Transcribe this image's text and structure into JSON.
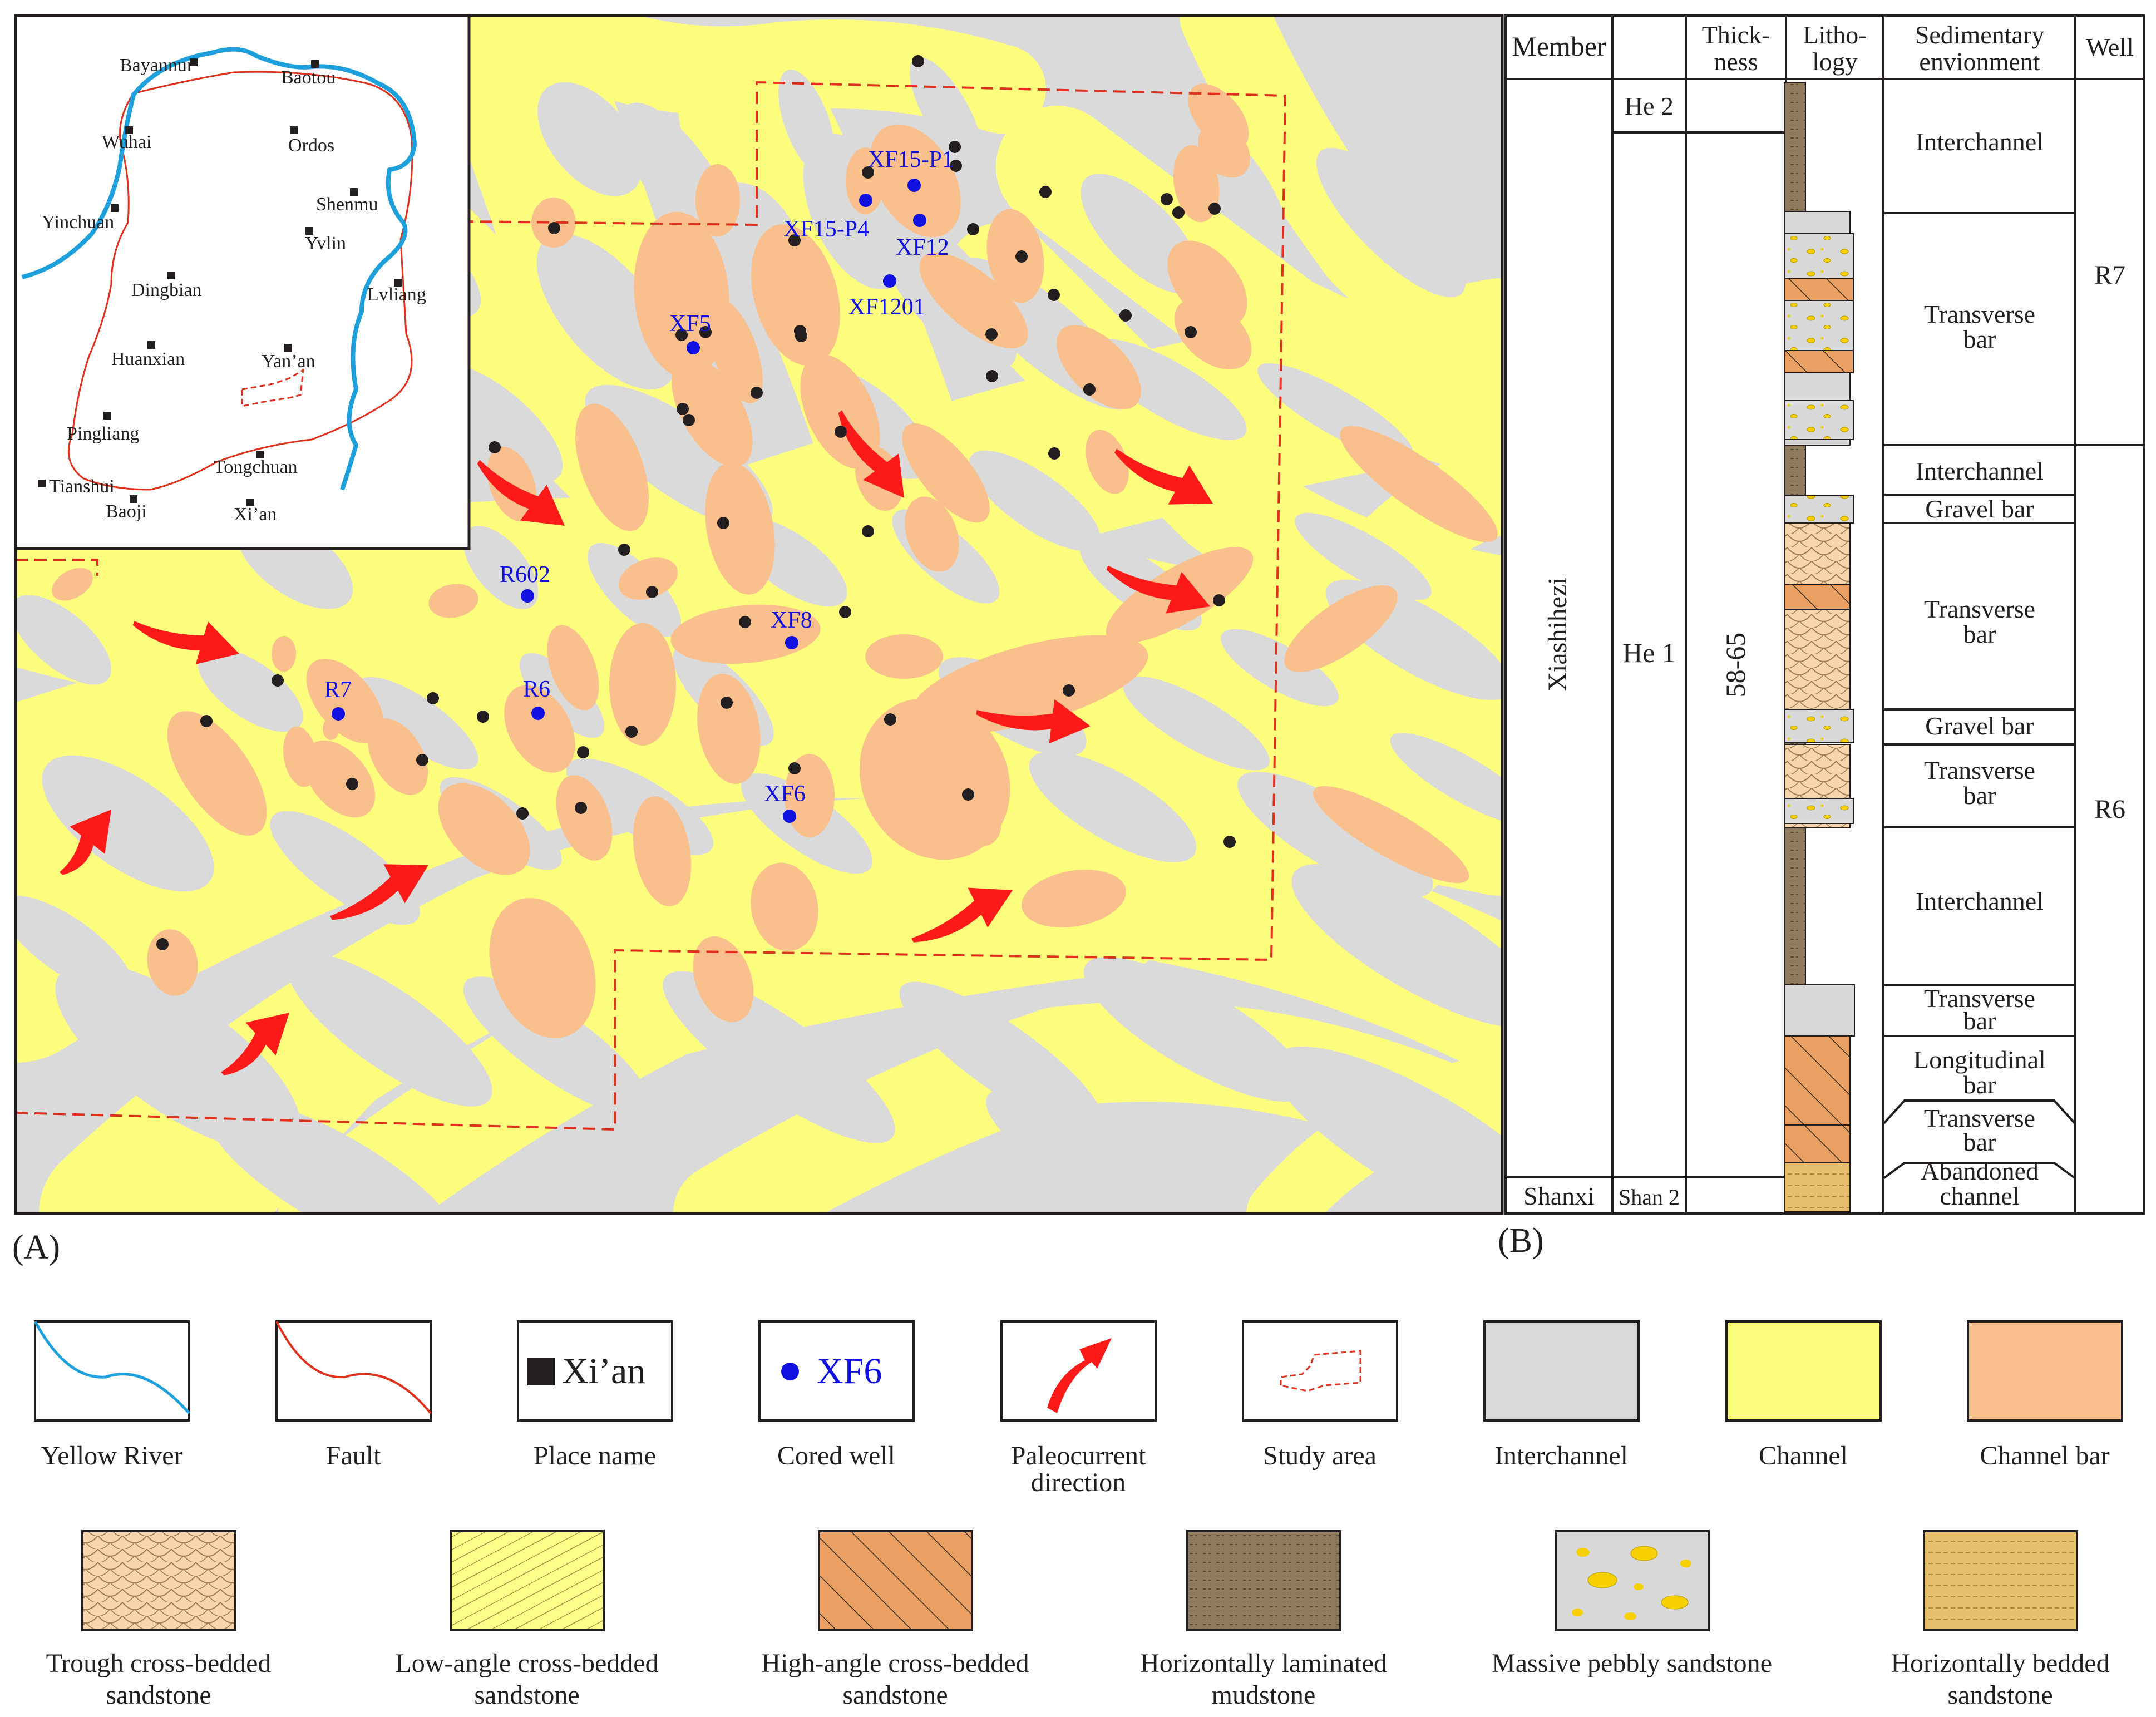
{
  "panels": {
    "a_label": "(A)",
    "b_label": "(B)"
  },
  "inset_places": [
    {
      "name": "Bayannur",
      "id": "bayannur"
    },
    {
      "name": "Baotou",
      "id": "baotou"
    },
    {
      "name": "Wuhai",
      "id": "wuhai"
    },
    {
      "name": "Ordos",
      "id": "ordos"
    },
    {
      "name": "Yinchuan",
      "id": "yinchuan"
    },
    {
      "name": "Shenmu",
      "id": "shenmu"
    },
    {
      "name": "Yvlin",
      "id": "yvlin"
    },
    {
      "name": "Dingbian",
      "id": "dingbian"
    },
    {
      "name": "Lvliang",
      "id": "lvliang"
    },
    {
      "name": "Huanxian",
      "id": "huanxian"
    },
    {
      "name": "Yan’an",
      "id": "yanan"
    },
    {
      "name": "Pingliang",
      "id": "pingliang"
    },
    {
      "name": "Tongchuan",
      "id": "tongchuan"
    },
    {
      "name": "Tianshui",
      "id": "tianshui"
    },
    {
      "name": "Baoji",
      "id": "baoji"
    },
    {
      "name": "Xi’an",
      "id": "xian"
    }
  ],
  "cored_wells": [
    {
      "name": "XF15-P1"
    },
    {
      "name": "XF15-P4"
    },
    {
      "name": "XF12"
    },
    {
      "name": "XF1201"
    },
    {
      "name": "XF5"
    },
    {
      "name": "R602"
    },
    {
      "name": "XF8"
    },
    {
      "name": "R7"
    },
    {
      "name": "R6"
    },
    {
      "name": "XF6"
    }
  ],
  "column": {
    "headers": {
      "member": "Member",
      "thickness_1": "Thick-",
      "thickness_2": "ness",
      "lithology_1": "Litho-",
      "lithology_2": "logy",
      "environment_1": "Sedimentary",
      "environment_2": "envionment",
      "well": "Well"
    },
    "members": {
      "xiashihezi": "Xiashihezi",
      "shanxi": "Shanxi"
    },
    "submembers": {
      "he2": "He 2",
      "he1": "He 1",
      "shan2": "Shan 2"
    },
    "thickness": "58-65",
    "environments": [
      {
        "line1": "Interchannel",
        "line2": ""
      },
      {
        "line1": "Transverse",
        "line2": "bar"
      },
      {
        "line1": "Interchannel",
        "line2": ""
      },
      {
        "line1": "Gravel bar",
        "line2": ""
      },
      {
        "line1": "Transverse",
        "line2": "bar"
      },
      {
        "line1": "Gravel bar",
        "line2": ""
      },
      {
        "line1": "Transverse",
        "line2": "bar"
      },
      {
        "line1": "Interchannel",
        "line2": ""
      },
      {
        "line1": "Transverse",
        "line2": "bar"
      },
      {
        "line1": "Longitudinal",
        "line2": "bar"
      },
      {
        "line1": "Transverse",
        "line2": "bar"
      },
      {
        "line1": "Abandoned",
        "line2": "channel"
      }
    ],
    "wells": {
      "r7": "R7",
      "r6": "R6"
    }
  },
  "legend": {
    "row1": [
      {
        "label": "Yellow River",
        "label2": ""
      },
      {
        "label": "Fault",
        "label2": ""
      },
      {
        "label": "Place name",
        "label2": "",
        "sample": "Xi’an"
      },
      {
        "label": "Cored well",
        "label2": "",
        "sample": "XF6"
      },
      {
        "label": "Paleocurrent",
        "label2": "direction"
      },
      {
        "label": "Study area",
        "label2": ""
      },
      {
        "label": "Interchannel",
        "label2": ""
      },
      {
        "label": "Channel",
        "label2": ""
      },
      {
        "label": "Channel bar",
        "label2": ""
      }
    ],
    "row2": [
      {
        "label": "Trough cross-bedded",
        "label2": "sandstone"
      },
      {
        "label": "Low-angle cross-bedded",
        "label2": "sandstone"
      },
      {
        "label": "High-angle cross-bedded",
        "label2": "sandstone"
      },
      {
        "label": "Horizontally laminated",
        "label2": "mudstone"
      },
      {
        "label": "Massive pebbly sandstone",
        "label2": ""
      },
      {
        "label": "Horizontally bedded",
        "label2": "sandstone"
      }
    ]
  },
  "colors": {
    "interchannel": "#dadada",
    "channel": "#fdfd7e",
    "channel_bar": "#f9bf8c",
    "river": "#1ea0dc",
    "fault": "#e0301e",
    "well": "#1010e0",
    "arrow": "#ff1a1a"
  }
}
